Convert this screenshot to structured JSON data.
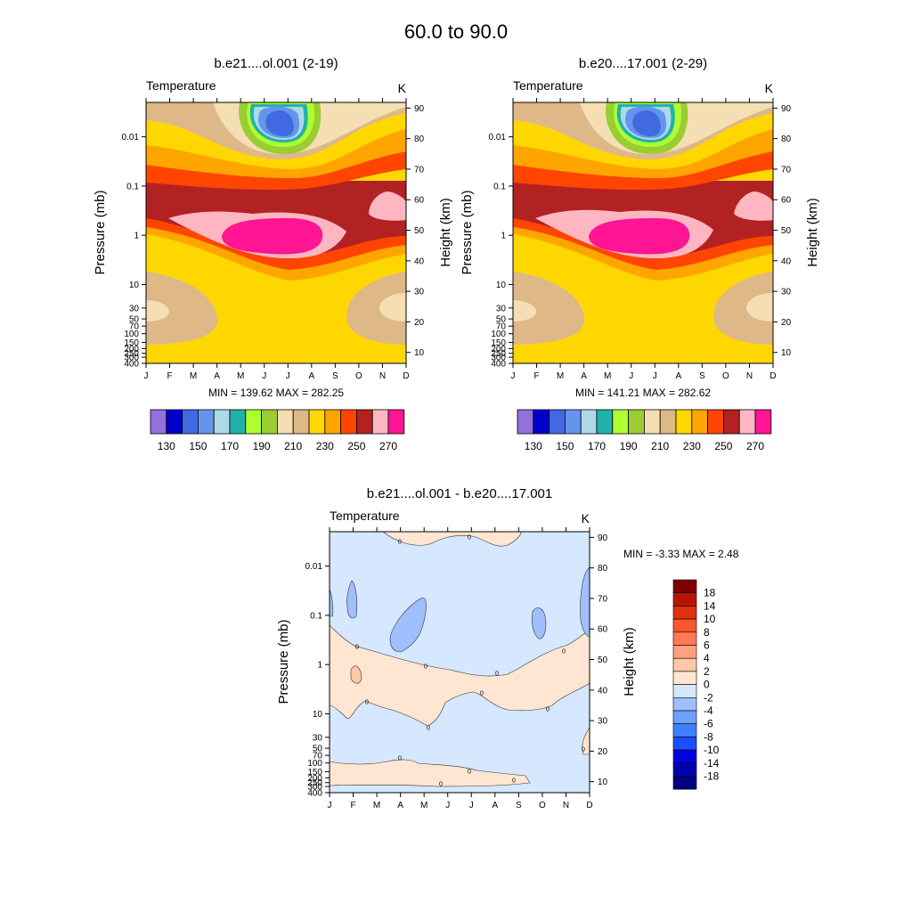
{
  "figure": {
    "title": "60.0 to  90.0"
  },
  "colors": {
    "fill_palette": [
      "#9370DB",
      "#0000CD",
      "#4169E1",
      "#6495ED",
      "#ADD8E6",
      "#20B2AA",
      "#ADFF2F",
      "#9ACD32",
      "#F5DEB3",
      "#DEB887",
      "#FFD700",
      "#FFA500",
      "#FF4500",
      "#B22222",
      "#FFB6C1",
      "#FF1493"
    ],
    "diff_palette": [
      "#000080",
      "#0000B0",
      "#0000E0",
      "#1A4FFF",
      "#3F7FFF",
      "#6F9FFF",
      "#9FBFFF",
      "#D5E8FF",
      "#FFE6D2",
      "#FFC8A8",
      "#FFA17E",
      "#FF7A55",
      "#FF5530",
      "#E0300F",
      "#B81500",
      "#800000"
    ]
  },
  "chart_data": [
    {
      "type": "heatmap",
      "panel": "top-left",
      "title": "b.e21....ol.001 (2-19)",
      "left_label": "Temperature",
      "right_label": "K",
      "ylabel": "Pressure (mb)",
      "y2label": "Height (km)",
      "x_ticks": [
        "J",
        "F",
        "M",
        "A",
        "M",
        "J",
        "J",
        "A",
        "S",
        "O",
        "N",
        "D"
      ],
      "y_ticks": [
        "0.01",
        "0.1",
        "1",
        "10",
        "30",
        "50",
        "70",
        "100",
        "150",
        "200",
        "250",
        "300",
        "400"
      ],
      "y2_ticks": [
        "90",
        "80",
        "70",
        "60",
        "50",
        "40",
        "30",
        "20",
        "10"
      ],
      "min_max": "MIN = 139.62  MAX = 282.25",
      "colorbar_labels": [
        "130",
        "150",
        "170",
        "190",
        "210",
        "230",
        "250",
        "270"
      ],
      "ylim_mb": [
        400,
        0.002
      ]
    },
    {
      "type": "heatmap",
      "panel": "top-right",
      "title": "b.e20....17.001 (2-29)",
      "left_label": "Temperature",
      "right_label": "K",
      "ylabel": "Pressure (mb)",
      "y2label": "Height (km)",
      "x_ticks": [
        "J",
        "F",
        "M",
        "A",
        "M",
        "J",
        "J",
        "A",
        "S",
        "O",
        "N",
        "D"
      ],
      "y_ticks": [
        "0.01",
        "0.1",
        "1",
        "10",
        "30",
        "50",
        "70",
        "100",
        "150",
        "200",
        "250",
        "300",
        "400"
      ],
      "y2_ticks": [
        "90",
        "80",
        "70",
        "60",
        "50",
        "40",
        "30",
        "20",
        "10"
      ],
      "min_max": "MIN = 141.21  MAX = 282.62",
      "colorbar_labels": [
        "130",
        "150",
        "170",
        "190",
        "210",
        "230",
        "250",
        "270"
      ],
      "ylim_mb": [
        400,
        0.002
      ]
    },
    {
      "type": "heatmap",
      "panel": "bottom",
      "title": "b.e21....ol.001 - b.e20....17.001",
      "left_label": "Temperature",
      "right_label": "K",
      "ylabel": "Pressure (mb)",
      "y2label": "Height (km)",
      "x_ticks": [
        "J",
        "F",
        "M",
        "A",
        "M",
        "J",
        "J",
        "A",
        "S",
        "O",
        "N",
        "D"
      ],
      "y_ticks": [
        "0.01",
        "0.1",
        "1",
        "10",
        "30",
        "50",
        "70",
        "100",
        "150",
        "200",
        "250",
        "300",
        "400"
      ],
      "y2_ticks": [
        "90",
        "80",
        "70",
        "60",
        "50",
        "40",
        "30",
        "20",
        "10"
      ],
      "min_max": "MIN =  -3.33  MAX =   2.48",
      "colorbar_labels": [
        "18",
        "14",
        "10",
        "8",
        "6",
        "4",
        "2",
        "0",
        "-2",
        "-4",
        "-6",
        "-8",
        "-10",
        "-14",
        "-18"
      ],
      "contour_label": "0",
      "ylim_mb": [
        400,
        0.002
      ]
    }
  ]
}
